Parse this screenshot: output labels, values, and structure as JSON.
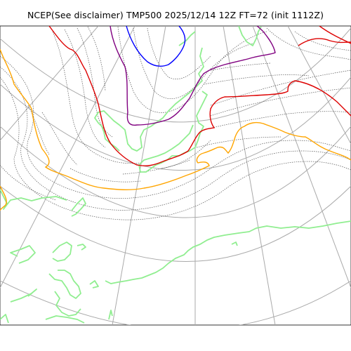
{
  "title": "NCEP(See disclaimer) TMP500 2025/12/14 12Z FT=72 (init 1112Z)",
  "colors": {
    "graticule": "#aaaaaa",
    "isotherm": "#555555",
    "coast": "#90ee90",
    "contour_blue": "#0000ff",
    "contour_purple": "#800080",
    "contour_red": "#dd0000",
    "contour_orange": "#ffa500"
  }
}
